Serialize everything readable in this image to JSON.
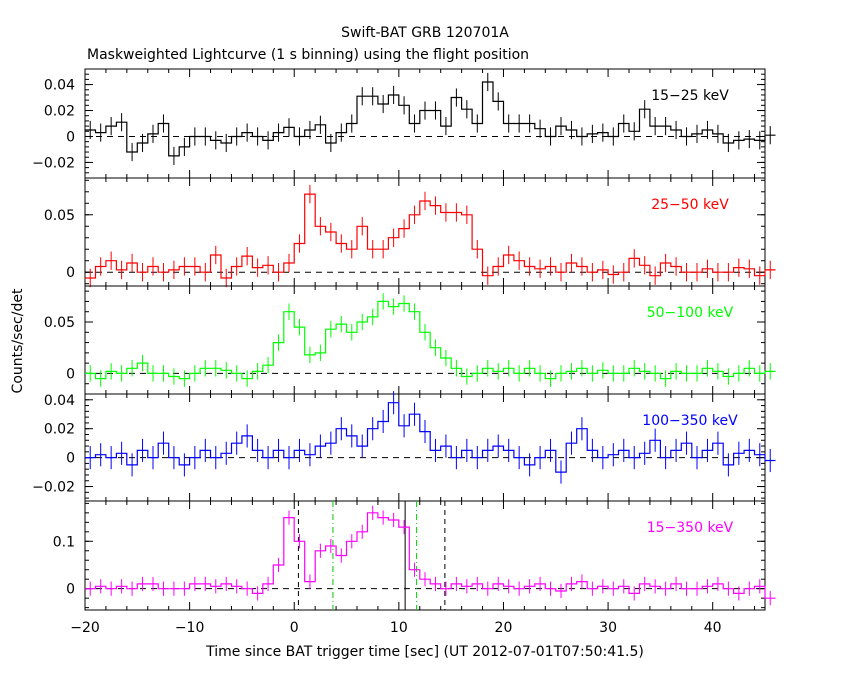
{
  "title": "Swift-BAT GRB 120701A",
  "subtitle": "Maskweighted Lightcurve (1 s binning) using the flight position",
  "xlabel": "Time since BAT trigger time [sec] (UT 2012-07-01T07:50:41.5)",
  "ylabel": "Counts/sec/det",
  "x_range": [
    -20,
    45
  ],
  "x_ticks": [
    -20,
    -10,
    0,
    10,
    20,
    30,
    40
  ],
  "x_tick_labels": [
    "−20",
    "−10",
    "0",
    "10",
    "20",
    "30",
    "40"
  ],
  "colors": {
    "axis": "#000000",
    "band1": "#000000",
    "band2": "#ff0000",
    "band3": "#00ff00",
    "band4": "#0000ff",
    "band5": "#ff00ff",
    "t90": "#00cc00"
  },
  "chart_data": [
    {
      "type": "line",
      "band": "15-25 keV",
      "label": "15−25 keV",
      "color": "#000000",
      "ylim": [
        -0.032,
        0.052
      ],
      "yticks": [
        -0.02,
        0,
        0.02,
        0.04
      ],
      "ytick_labels": [
        "−0.02",
        "0",
        "0.02",
        "0.04"
      ],
      "x_start": -20,
      "values": [
        0.005,
        0.003,
        0.008,
        0.011,
        -0.012,
        -0.005,
        0.002,
        0.01,
        -0.015,
        -0.008,
        0,
        0,
        -0.003,
        -0.005,
        0,
        0.003,
        0,
        -0.003,
        0.003,
        0.007,
        0,
        0.005,
        0.009,
        -0.005,
        0.003,
        0.01,
        0.031,
        0.031,
        0.025,
        0.032,
        0.024,
        0.01,
        0.02,
        0.02,
        0.008,
        0.03,
        0.021,
        0.01,
        0.042,
        0.027,
        0.01,
        0.01,
        0.01,
        0.006,
        0,
        0.008,
        0.005,
        0,
        0.002,
        0.003,
        0,
        0.01,
        0.004,
        0.021,
        0.008,
        0.008,
        0.005,
        0,
        0.002,
        0.005,
        0.002,
        -0.005,
        -0.003,
        -0.002,
        -0.003,
        0.001
      ],
      "errors": 0.007
    },
    {
      "type": "line",
      "band": "25-50 keV",
      "label": "25−50 keV",
      "color": "#ff0000",
      "ylim": [
        -0.012,
        0.082
      ],
      "yticks": [
        0,
        0.05
      ],
      "ytick_labels": [
        "0",
        "0.05"
      ],
      "x_start": -20,
      "values": [
        -0.005,
        0.005,
        0.01,
        0.002,
        0.008,
        0,
        0.005,
        0,
        0.002,
        0.005,
        0.005,
        0,
        0.015,
        -0.005,
        0.005,
        0.014,
        0.004,
        0.006,
        0,
        0.008,
        0.025,
        0.068,
        0.04,
        0.035,
        0.025,
        0.02,
        0.04,
        0.02,
        0.02,
        0.03,
        0.038,
        0.05,
        0.062,
        0.058,
        0.052,
        0.052,
        0.05,
        0.02,
        -0.003,
        0.005,
        0.015,
        0.01,
        0.005,
        0.003,
        0.005,
        0,
        0.008,
        0.005,
        0,
        0.002,
        -0.002,
        0,
        0.012,
        0.006,
        -0.003,
        0.008,
        0.005,
        0,
        0,
        0.003,
        0,
        0,
        0.004,
        0.003,
        -0.003,
        0.002
      ],
      "errors": 0.008
    },
    {
      "type": "line",
      "band": "50-100 keV",
      "label": "50−100 keV",
      "color": "#00ff00",
      "ylim": [
        -0.02,
        0.085
      ],
      "yticks": [
        0,
        0.05
      ],
      "ytick_labels": [
        "0",
        "0.05"
      ],
      "x_start": -20,
      "values": [
        0,
        -0.005,
        0.002,
        0,
        0.005,
        0.01,
        0,
        0,
        -0.003,
        -0.005,
        0,
        0.005,
        0.005,
        0.003,
        0,
        -0.005,
        0.002,
        0.008,
        0.03,
        0.06,
        0.045,
        0.018,
        0.02,
        0.043,
        0.048,
        0.04,
        0.05,
        0.055,
        0.07,
        0.065,
        0.068,
        0.06,
        0.04,
        0.025,
        0.015,
        0.005,
        -0.003,
        0,
        0.005,
        0.002,
        0.005,
        0,
        0.005,
        0,
        -0.005,
        0,
        0.002,
        0.005,
        0,
        0.003,
        0,
        0,
        0.005,
        0.002,
        0,
        -0.005,
        0.002,
        0,
        0,
        0.005,
        0.002,
        -0.003,
        0,
        0.005,
        0,
        0.002
      ],
      "errors": 0.008
    },
    {
      "type": "line",
      "band": "100-350 keV",
      "label": "100−350 keV",
      "color": "#0000ff",
      "ylim": [
        -0.03,
        0.044
      ],
      "yticks": [
        -0.02,
        0,
        0.02,
        0.04
      ],
      "ytick_labels": [
        "−0.02",
        "0",
        "0.02",
        "0.04"
      ],
      "x_start": -20,
      "values": [
        0,
        0.002,
        0,
        0.003,
        -0.005,
        0.005,
        0,
        0.01,
        0,
        -0.005,
        0,
        0.005,
        0,
        0.003,
        0.01,
        0.015,
        0.005,
        0,
        0.005,
        0,
        0.005,
        0.002,
        0.008,
        0.01,
        0.02,
        0.015,
        0.008,
        0.02,
        0.025,
        0.038,
        0.022,
        0.03,
        0.018,
        0.005,
        0.008,
        0,
        0.005,
        0,
        0.005,
        0.008,
        0.005,
        0,
        -0.005,
        0,
        0.005,
        -0.01,
        0.01,
        0.02,
        0.005,
        0,
        0.002,
        0.005,
        0,
        0.003,
        0.012,
        0,
        0.005,
        0.01,
        0,
        0.005,
        0.01,
        -0.005,
        0.003,
        0.005,
        0.002,
        -0.002
      ],
      "errors": 0.008
    },
    {
      "type": "line",
      "band": "15-350 keV",
      "label": "15−350 keV",
      "color": "#ff00ff",
      "ylim": [
        -0.045,
        0.185
      ],
      "yticks": [
        0,
        0.1
      ],
      "ytick_labels": [
        "0",
        "0.1"
      ],
      "x_start": -20,
      "values": [
        0,
        0.005,
        0,
        0.005,
        0,
        0.01,
        0.01,
        0,
        0,
        0,
        0.01,
        0.01,
        0.005,
        0.01,
        0.005,
        0,
        -0.01,
        0.01,
        0.05,
        0.15,
        0.1,
        0.015,
        0.08,
        0.09,
        0.07,
        0.1,
        0.12,
        0.16,
        0.15,
        0.145,
        0.13,
        0.04,
        0.02,
        0.01,
        0,
        0.01,
        0.005,
        0.01,
        0,
        0.01,
        0.005,
        0,
        0.005,
        0.01,
        0,
        -0.005,
        0.01,
        0.015,
        0,
        0.005,
        0,
        0.005,
        -0.01,
        0.01,
        0.005,
        0,
        0.01,
        0,
        0,
        0.005,
        0.01,
        0,
        -0.01,
        0,
        0.005,
        -0.02
      ],
      "errors": 0.015,
      "markers": {
        "black_dashed": [
          0.4,
          14.4
        ],
        "green_dashdot": [
          3.7,
          11.7
        ],
        "black_solid": [
          10.6
        ]
      }
    }
  ]
}
